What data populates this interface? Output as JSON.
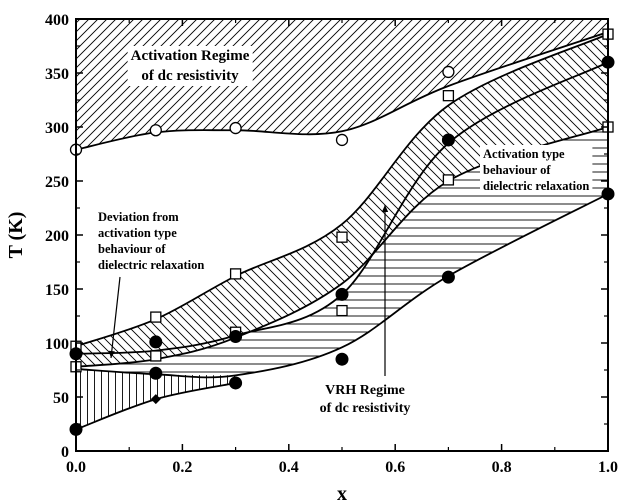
{
  "chart_data": {
    "type": "scatter",
    "title": "",
    "xlabel": "x",
    "ylabel": "T (K)",
    "xlim": [
      0.0,
      1.0
    ],
    "ylim": [
      0,
      400
    ],
    "x_ticks": [
      "0.0",
      "0.2",
      "0.4",
      "0.6",
      "0.8",
      "1.0"
    ],
    "y_ticks": [
      "0",
      "50",
      "100",
      "150",
      "200",
      "250",
      "300",
      "350",
      "400"
    ],
    "grid": false,
    "series": [
      {
        "marker": "open-circle",
        "points": [
          [
            0.0,
            279
          ],
          [
            0.15,
            297
          ],
          [
            0.3,
            299
          ],
          [
            0.5,
            288
          ],
          [
            0.7,
            351
          ]
        ]
      },
      {
        "marker": "open-square",
        "points": [
          [
            0.0,
            97
          ],
          [
            0.0,
            78
          ],
          [
            0.15,
            124
          ],
          [
            0.15,
            88
          ],
          [
            0.3,
            164
          ],
          [
            0.3,
            110
          ],
          [
            0.5,
            198
          ],
          [
            0.5,
            130
          ],
          [
            0.7,
            329
          ],
          [
            0.7,
            251
          ],
          [
            1.0,
            386
          ],
          [
            1.0,
            300
          ]
        ]
      },
      {
        "marker": "filled-circle",
        "points": [
          [
            0.0,
            90
          ],
          [
            0.0,
            20
          ],
          [
            0.15,
            101
          ],
          [
            0.15,
            72
          ],
          [
            0.3,
            106
          ],
          [
            0.3,
            63
          ],
          [
            0.5,
            145
          ],
          [
            0.5,
            85
          ],
          [
            0.7,
            288
          ],
          [
            0.7,
            161
          ],
          [
            1.0,
            360
          ],
          [
            1.0,
            238
          ]
        ]
      },
      {
        "marker": "filled-diamond",
        "points": [
          [
            0.15,
            48
          ]
        ]
      }
    ],
    "curves": {
      "activation_boundary": [
        [
          0.0,
          279
        ],
        [
          0.15,
          295
        ],
        [
          0.3,
          297
        ],
        [
          0.5,
          296
        ],
        [
          0.7,
          338
        ],
        [
          1.0,
          388
        ]
      ],
      "diag_upper": [
        [
          0.0,
          97
        ],
        [
          0.15,
          122
        ],
        [
          0.3,
          162
        ],
        [
          0.5,
          210
        ],
        [
          0.7,
          320
        ],
        [
          1.0,
          386
        ]
      ],
      "diag_lower": [
        [
          0.0,
          78
        ],
        [
          0.15,
          85
        ],
        [
          0.3,
          105
        ],
        [
          0.5,
          155
        ],
        [
          0.7,
          250
        ],
        [
          1.0,
          300
        ]
      ],
      "horiz_upper": [
        [
          0.0,
          90
        ],
        [
          0.15,
          93
        ],
        [
          0.3,
          107
        ],
        [
          0.5,
          145
        ],
        [
          0.7,
          285
        ],
        [
          1.0,
          360
        ]
      ],
      "horiz_lower": [
        [
          0.0,
          76
        ],
        [
          0.15,
          71
        ],
        [
          0.3,
          70
        ],
        [
          0.5,
          96
        ],
        [
          0.7,
          162
        ],
        [
          1.0,
          238
        ]
      ],
      "vert_lower": [
        [
          0.0,
          20
        ],
        [
          0.15,
          48
        ],
        [
          0.3,
          63
        ]
      ]
    },
    "annotations": [
      {
        "lines": [
          "Activation Regime",
          "of dc resistivity"
        ]
      },
      {
        "lines": [
          "Activation type",
          "behaviour of",
          "dielectric relaxation"
        ]
      },
      {
        "lines": [
          "Deviation from",
          "activation type",
          "behaviour of",
          "dielectric relaxation"
        ]
      },
      {
        "lines": [
          "VRH Regime",
          "of dc resistivity"
        ]
      }
    ]
  }
}
